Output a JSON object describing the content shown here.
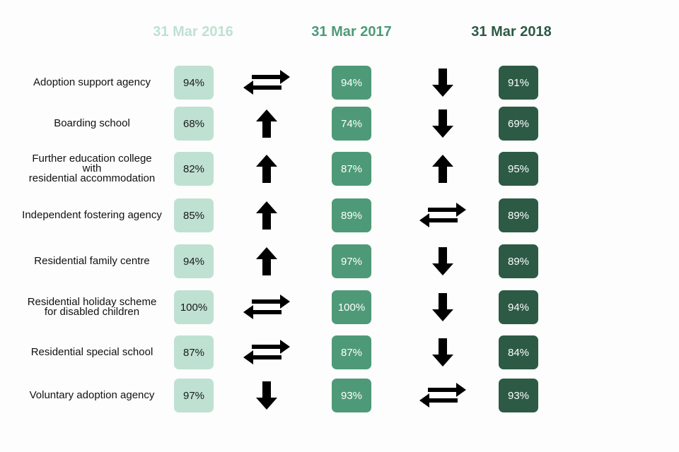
{
  "headers": [
    "31 Mar 2016",
    "31 Mar 2017",
    "31 Mar 2018"
  ],
  "colors": {
    "y2016": "#bfe1d2",
    "y2017": "#4e9a78",
    "y2018": "#2c5a45"
  },
  "rows": [
    {
      "label": "Adoption support agency",
      "v2016": "94%",
      "t1": "swap",
      "v2017": "94%",
      "t2": "down",
      "v2018": "91%"
    },
    {
      "label": "Boarding school",
      "v2016": "68%",
      "t1": "up",
      "v2017": "74%",
      "t2": "down",
      "v2018": "69%"
    },
    {
      "label": "Further education college\nwith\nresidential accommodation",
      "v2016": "82%",
      "t1": "up",
      "v2017": "87%",
      "t2": "up",
      "v2018": "95%"
    },
    {
      "label": "Independent fostering agency",
      "v2016": "85%",
      "t1": "up",
      "v2017": "89%",
      "t2": "swap",
      "v2018": "89%"
    },
    {
      "label": "Residential family centre",
      "v2016": "94%",
      "t1": "up",
      "v2017": "97%",
      "t2": "down",
      "v2018": "89%"
    },
    {
      "label": "Residential holiday scheme\nfor disabled children",
      "v2016": "100%",
      "t1": "swap",
      "v2017": "100%",
      "t2": "down",
      "v2018": "94%"
    },
    {
      "label": "Residential special school",
      "v2016": "87%",
      "t1": "swap",
      "v2017": "87%",
      "t2": "down",
      "v2018": "84%"
    },
    {
      "label": "Voluntary adoption agency",
      "v2016": "97%",
      "t1": "down",
      "v2017": "93%",
      "t2": "swap",
      "v2018": "93%"
    }
  ]
}
